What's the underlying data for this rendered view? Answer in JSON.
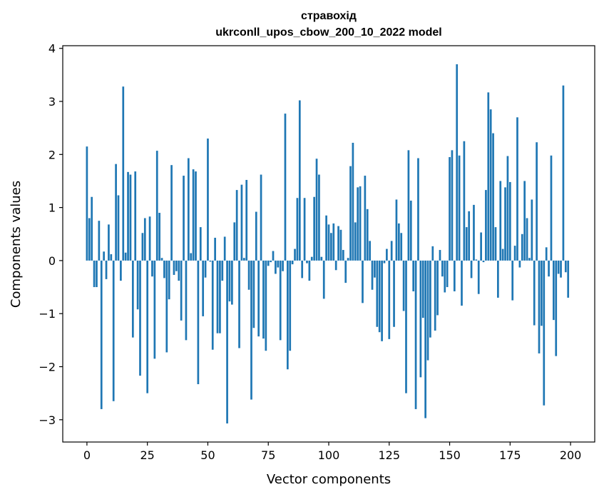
{
  "chart_data": {
    "type": "bar",
    "title": "стравохід",
    "subtitle": "ukrconll_upos_cbow_200_10_2022 model",
    "xlabel": "Vector components",
    "ylabel": "Components values",
    "xlim": [
      -10,
      210
    ],
    "ylim": [
      -3.42,
      4.05
    ],
    "xticks": [
      0,
      25,
      50,
      75,
      100,
      125,
      150,
      175,
      200
    ],
    "yticks": [
      -3,
      -2,
      -1,
      0,
      1,
      2,
      3,
      4
    ],
    "bar_color": "#1f77b4",
    "x": [
      0,
      1,
      2,
      3,
      4,
      5,
      6,
      7,
      8,
      9,
      10,
      11,
      12,
      13,
      14,
      15,
      16,
      17,
      18,
      19,
      20,
      21,
      22,
      23,
      24,
      25,
      26,
      27,
      28,
      29,
      30,
      31,
      32,
      33,
      34,
      35,
      36,
      37,
      38,
      39,
      40,
      41,
      42,
      43,
      44,
      45,
      46,
      47,
      48,
      49,
      50,
      51,
      52,
      53,
      54,
      55,
      56,
      57,
      58,
      59,
      60,
      61,
      62,
      63,
      64,
      65,
      66,
      67,
      68,
      69,
      70,
      71,
      72,
      73,
      74,
      75,
      76,
      77,
      78,
      79,
      80,
      81,
      82,
      83,
      84,
      85,
      86,
      87,
      88,
      89,
      90,
      91,
      92,
      93,
      94,
      95,
      96,
      97,
      98,
      99,
      100,
      101,
      102,
      103,
      104,
      105,
      106,
      107,
      108,
      109,
      110,
      111,
      112,
      113,
      114,
      115,
      116,
      117,
      118,
      119,
      120,
      121,
      122,
      123,
      124,
      125,
      126,
      127,
      128,
      129,
      130,
      131,
      132,
      133,
      134,
      135,
      136,
      137,
      138,
      139,
      140,
      141,
      142,
      143,
      144,
      145,
      146,
      147,
      148,
      149,
      150,
      151,
      152,
      153,
      154,
      155,
      156,
      157,
      158,
      159,
      160,
      161,
      162,
      163,
      164,
      165,
      166,
      167,
      168,
      169,
      170,
      171,
      172,
      173,
      174,
      175,
      176,
      177,
      178,
      179,
      180,
      181,
      182,
      183,
      184,
      185,
      186,
      187,
      188,
      189,
      190,
      191,
      192,
      193,
      194,
      195,
      196,
      197,
      198,
      199
    ],
    "values": [
      2.15,
      0.8,
      1.2,
      -0.5,
      -0.5,
      0.75,
      -2.8,
      0.17,
      -0.35,
      0.68,
      0.12,
      -2.65,
      1.82,
      1.23,
      -0.38,
      3.28,
      0.15,
      1.67,
      1.62,
      -1.45,
      1.68,
      -0.92,
      -2.17,
      0.52,
      0.8,
      -2.5,
      0.83,
      -0.3,
      -1.85,
      2.07,
      0.9,
      0.05,
      -0.33,
      -1.73,
      -0.73,
      1.8,
      -0.27,
      -0.2,
      -0.38,
      -1.13,
      1.6,
      -1.5,
      1.93,
      0.14,
      1.72,
      1.68,
      -2.33,
      0.63,
      -1.05,
      -0.32,
      2.3,
      -0.02,
      -1.68,
      0.43,
      -1.37,
      -1.37,
      -0.38,
      0.45,
      -3.07,
      -0.77,
      -0.83,
      0.72,
      1.33,
      -1.65,
      1.43,
      0.05,
      1.52,
      -0.55,
      -2.62,
      -1.27,
      0.92,
      -1.43,
      1.62,
      -1.47,
      -1.7,
      -0.1,
      -0.03,
      0.18,
      -0.25,
      -0.13,
      -1.5,
      -0.2,
      2.77,
      -2.05,
      -1.7,
      -0.07,
      0.22,
      1.18,
      3.02,
      -0.33,
      1.18,
      -0.05,
      -0.38,
      0.07,
      1.2,
      1.92,
      1.62,
      0.07,
      -0.72,
      0.85,
      0.68,
      0.52,
      0.7,
      -0.18,
      0.65,
      0.58,
      0.2,
      -0.42,
      0.05,
      1.78,
      2.22,
      0.72,
      1.38,
      1.4,
      -0.8,
      1.6,
      0.97,
      0.37,
      -0.55,
      -0.32,
      -1.25,
      -1.35,
      -1.52,
      -0.05,
      0.22,
      -1.48,
      0.37,
      -1.25,
      1.15,
      0.7,
      0.52,
      -0.95,
      -2.5,
      2.08,
      1.13,
      -0.58,
      -2.8,
      1.93,
      -2.2,
      -1.08,
      -2.97,
      -1.88,
      -1.45,
      0.27,
      -1.32,
      -1.03,
      0.2,
      -0.3,
      -0.6,
      -0.5,
      1.95,
      2.08,
      -0.58,
      3.7,
      1.98,
      -0.85,
      2.25,
      0.63,
      0.93,
      -0.33,
      1.05,
      0.02,
      -0.63,
      0.53,
      -0.03,
      1.33,
      3.17,
      2.85,
      2.4,
      0.63,
      -0.7,
      1.5,
      0.22,
      1.38,
      1.97,
      1.48,
      -0.75,
      0.28,
      2.7,
      -0.13,
      0.5,
      1.5,
      0.8,
      0.05,
      1.15,
      -1.22,
      2.23,
      -1.75,
      -1.23,
      -2.73,
      0.25,
      -0.3,
      1.98,
      -1.12,
      -1.8,
      -0.25,
      -0.32,
      3.3,
      -0.22,
      -0.7
    ]
  }
}
